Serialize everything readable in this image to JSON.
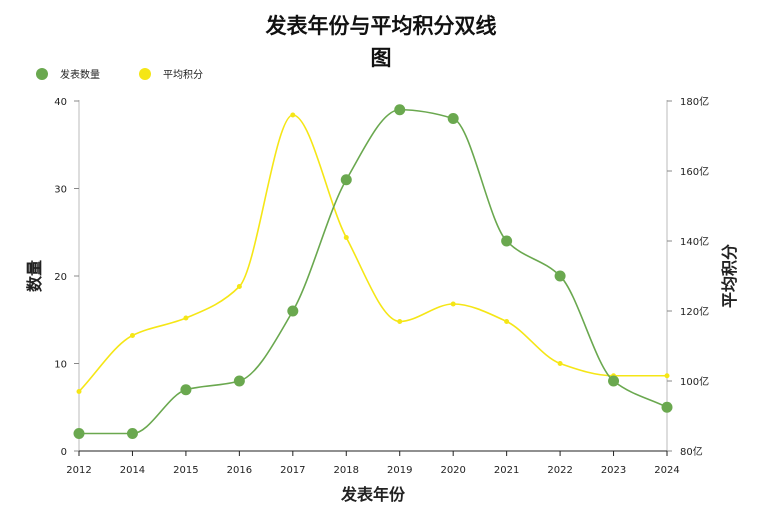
{
  "chart_data": {
    "type": "line",
    "title": "发表年份与平均积分双线图",
    "title_lines": [
      "发表年份与平均积分双线",
      "图"
    ],
    "xlabel": "发表年份",
    "ylabel_left": "数量",
    "ylabel_right": "平均积分",
    "categories": [
      "2012",
      "2014",
      "2015",
      "2016",
      "2017",
      "2018",
      "2019",
      "2020",
      "2021",
      "2022",
      "2023",
      "2024"
    ],
    "series": [
      {
        "name": "发表数量",
        "axis": "left",
        "color": "#6aa84f",
        "values": [
          2,
          2,
          7,
          8,
          16,
          31,
          39,
          38,
          24,
          20,
          8,
          5
        ]
      },
      {
        "name": "平均积分",
        "axis": "right",
        "color": "#f5e616",
        "values": [
          97,
          113,
          118,
          127,
          176,
          141,
          117,
          122,
          117,
          105,
          101.5,
          101.5
        ]
      }
    ],
    "ylim_left": [
      0,
      40
    ],
    "yticks_left": [
      "0",
      "10",
      "20",
      "30",
      "40"
    ],
    "ylim_right": [
      80,
      180
    ],
    "yticks_right": [
      "80亿",
      "100亿",
      "120亿",
      "140亿",
      "160亿",
      "180亿"
    ],
    "legend_position": "top-left",
    "grid": false
  }
}
